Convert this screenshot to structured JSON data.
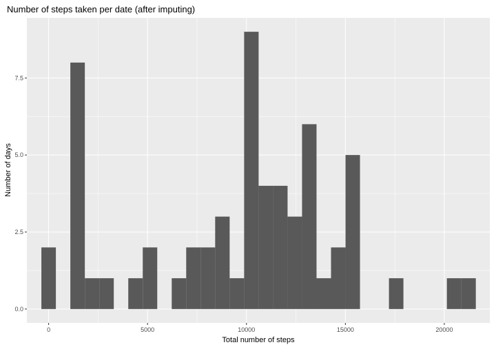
{
  "chart_data": {
    "type": "bar",
    "title": "Number of steps taken per date (after imputing)",
    "xlabel": "Total number of steps",
    "ylabel": "Number of days",
    "bin_width": 732,
    "bins": [
      {
        "x": 0,
        "count": 2
      },
      {
        "x": 1464,
        "count": 8
      },
      {
        "x": 2196,
        "count": 1
      },
      {
        "x": 2928,
        "count": 1
      },
      {
        "x": 4392,
        "count": 1
      },
      {
        "x": 5124,
        "count": 2
      },
      {
        "x": 6588,
        "count": 1
      },
      {
        "x": 7320,
        "count": 2
      },
      {
        "x": 8052,
        "count": 2
      },
      {
        "x": 8784,
        "count": 3
      },
      {
        "x": 9516,
        "count": 1
      },
      {
        "x": 10248,
        "count": 9
      },
      {
        "x": 10980,
        "count": 4
      },
      {
        "x": 11712,
        "count": 4
      },
      {
        "x": 12444,
        "count": 3
      },
      {
        "x": 13176,
        "count": 6
      },
      {
        "x": 13908,
        "count": 1
      },
      {
        "x": 14640,
        "count": 2
      },
      {
        "x": 15372,
        "count": 5
      },
      {
        "x": 17568,
        "count": 1
      },
      {
        "x": 20496,
        "count": 1
      },
      {
        "x": 21228,
        "count": 1
      }
    ],
    "xlim": [
      -1100,
      22300
    ],
    "ylim": [
      -0.45,
      9.45
    ],
    "x_ticks": [
      0,
      5000,
      10000,
      15000,
      20000
    ],
    "x_tick_labels": [
      "0",
      "5000",
      "10000",
      "15000",
      "20000"
    ],
    "y_ticks": [
      0,
      2.5,
      5,
      7.5
    ],
    "y_tick_labels": [
      "0.0",
      "2.5",
      "5.0",
      "7.5"
    ],
    "grid": true,
    "colors": {
      "panel": "#ebebeb",
      "bar": "#595959",
      "grid_major": "#ffffff",
      "tick_text": "#4d4d4d",
      "tick_mark": "#333333"
    }
  }
}
